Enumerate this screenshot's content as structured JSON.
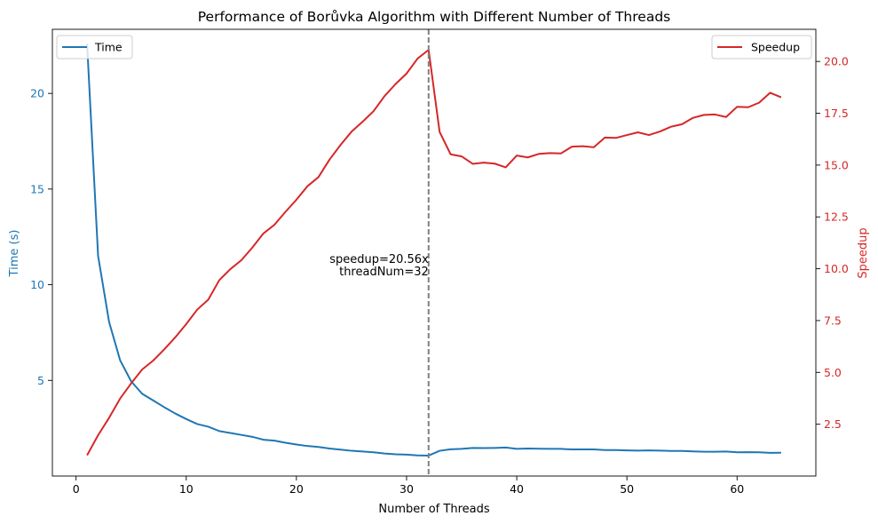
{
  "chart_data": {
    "type": "line",
    "title": "Performance of Borůvka Algorithm with Different Number of Threads",
    "xlabel": "Number of Threads",
    "ylabel_left": "Time (s)",
    "ylabel_right": "Speedup",
    "xlim": [
      -2.15,
      67.15
    ],
    "ylim_left": [
      0.0,
      23.35
    ],
    "ylim_right": [
      0.0,
      21.55
    ],
    "x_ticks": [
      0,
      10,
      20,
      30,
      40,
      50,
      60
    ],
    "y_left_ticks": [
      5,
      10,
      15,
      20
    ],
    "y_right_ticks": [
      "2.5",
      "5.0",
      "7.5",
      "10.0",
      "12.5",
      "15.0",
      "17.5",
      "20.0"
    ],
    "grid": false,
    "colors": {
      "time": "#1f77b4",
      "speedup": "#d62728",
      "vline": "#808080"
    },
    "series": [
      {
        "name": "Time",
        "axis": "left",
        "legend_position": "upper-left",
        "x": [
          1,
          2,
          3,
          4,
          5,
          6,
          7,
          8,
          9,
          10,
          11,
          12,
          13,
          14,
          15,
          16,
          17,
          18,
          19,
          20,
          21,
          22,
          23,
          24,
          25,
          26,
          27,
          28,
          29,
          30,
          31,
          32,
          33,
          34,
          35,
          36,
          37,
          38,
          39,
          40,
          41,
          42,
          43,
          44,
          45,
          46,
          47,
          48,
          49,
          50,
          51,
          52,
          53,
          54,
          55,
          56,
          57,
          58,
          59,
          60,
          61,
          62,
          63,
          64
        ],
        "values": [
          22.6,
          11.5,
          8.05,
          6.05,
          4.95,
          4.3,
          3.95,
          3.6,
          3.27,
          2.98,
          2.72,
          2.58,
          2.35,
          2.25,
          2.15,
          2.05,
          1.9,
          1.85,
          1.74,
          1.65,
          1.57,
          1.52,
          1.44,
          1.38,
          1.32,
          1.28,
          1.24,
          1.18,
          1.14,
          1.12,
          1.08,
          1.07,
          1.32,
          1.4,
          1.42,
          1.47,
          1.46,
          1.47,
          1.49,
          1.42,
          1.44,
          1.43,
          1.42,
          1.42,
          1.39,
          1.39,
          1.39,
          1.36,
          1.36,
          1.34,
          1.33,
          1.34,
          1.33,
          1.31,
          1.31,
          1.29,
          1.27,
          1.27,
          1.28,
          1.24,
          1.25,
          1.24,
          1.21,
          1.22
        ]
      },
      {
        "name": "Speedup",
        "axis": "right",
        "legend_position": "upper-right",
        "x": [
          1,
          2,
          3,
          4,
          5,
          6,
          7,
          8,
          9,
          10,
          11,
          12,
          13,
          14,
          15,
          16,
          17,
          18,
          19,
          20,
          21,
          22,
          23,
          24,
          25,
          26,
          27,
          28,
          29,
          30,
          31,
          32,
          33,
          34,
          35,
          36,
          37,
          38,
          39,
          40,
          41,
          42,
          43,
          44,
          45,
          46,
          47,
          48,
          49,
          50,
          51,
          52,
          53,
          54,
          55,
          56,
          57,
          58,
          59,
          60,
          61,
          62,
          63,
          64
        ],
        "values": [
          1.0,
          1.97,
          2.81,
          3.74,
          4.47,
          5.14,
          5.57,
          6.11,
          6.69,
          7.33,
          8.03,
          8.51,
          9.45,
          9.98,
          10.41,
          11.02,
          11.7,
          12.12,
          12.74,
          13.33,
          13.98,
          14.42,
          15.26,
          15.97,
          16.61,
          17.09,
          17.6,
          18.33,
          18.91,
          19.42,
          20.14,
          20.56,
          16.6,
          15.52,
          15.42,
          15.06,
          15.12,
          15.07,
          14.89,
          15.46,
          15.37,
          15.54,
          15.58,
          15.56,
          15.89,
          15.91,
          15.86,
          16.33,
          16.31,
          16.45,
          16.58,
          16.45,
          16.62,
          16.85,
          16.97,
          17.28,
          17.42,
          17.44,
          17.32,
          17.81,
          17.79,
          18.01,
          18.49,
          18.27
        ]
      }
    ],
    "vline": {
      "x": 32,
      "style": "dashed"
    },
    "annotation": {
      "line1": "speedup=20.56x",
      "line2": "threadNum=32",
      "x": 32,
      "y_left": 11.0
    }
  }
}
